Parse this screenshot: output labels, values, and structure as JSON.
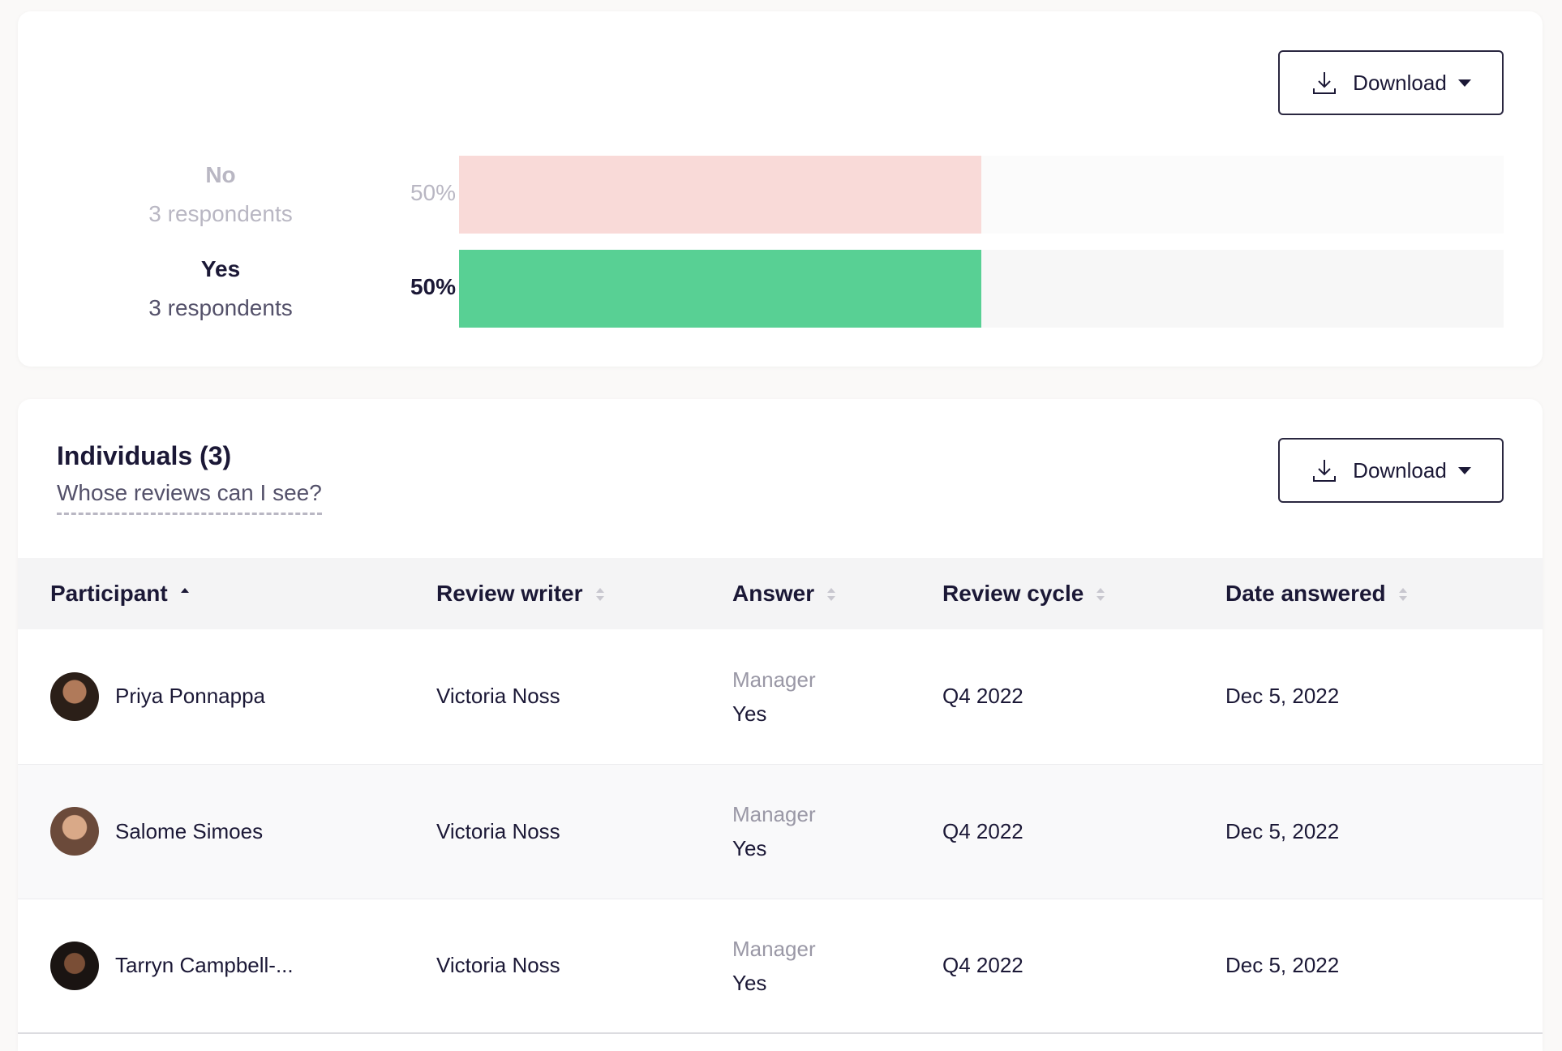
{
  "summary": {
    "download_label": "Download",
    "rows": [
      {
        "name": "No",
        "count": "3 respondents",
        "percent": "50%",
        "fraction": 0.5
      },
      {
        "name": "Yes",
        "count": "3 respondents",
        "percent": "50%",
        "fraction": 0.5
      }
    ],
    "colors": {
      "no": "#f9dad8",
      "yes": "#58d094"
    }
  },
  "individuals": {
    "title": "Individuals (3)",
    "help_link": "Whose reviews can I see?",
    "download_label": "Download",
    "columns": [
      "Participant",
      "Review writer",
      "Answer",
      "Review cycle",
      "Date answered"
    ],
    "rows": [
      {
        "participant": "Priya Ponnappa",
        "writer": "Victoria Noss",
        "role": "Manager",
        "answer": "Yes",
        "cycle": "Q4 2022",
        "date": "Dec 5, 2022"
      },
      {
        "participant": "Salome Simoes",
        "writer": "Victoria Noss",
        "role": "Manager",
        "answer": "Yes",
        "cycle": "Q4 2022",
        "date": "Dec 5, 2022"
      },
      {
        "participant": "Tarryn Campbell-...",
        "writer": "Victoria Noss",
        "role": "Manager",
        "answer": "Yes",
        "cycle": "Q4 2022",
        "date": "Dec 5, 2022"
      }
    ]
  }
}
